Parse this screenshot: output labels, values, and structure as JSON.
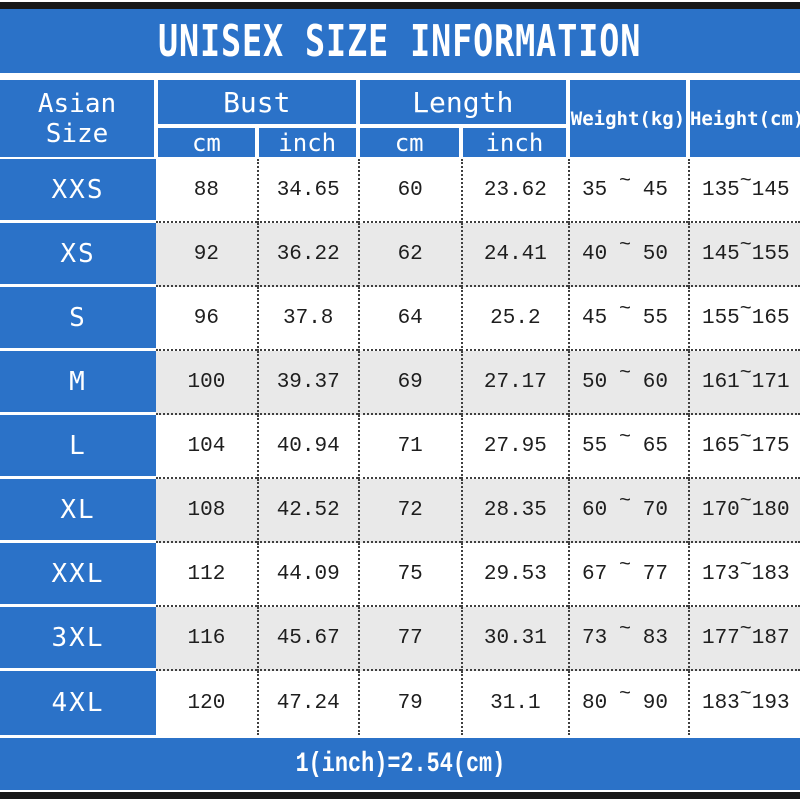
{
  "page": {
    "title": "UNISEX SIZE INFORMATION",
    "footnote": "1(inch)=2.54(cm)"
  },
  "header": {
    "asian_size": "Asian Size",
    "bust": "Bust",
    "length": "Length",
    "cm": "cm",
    "inch": "inch",
    "weight": "Weight(kg)",
    "height": "Height(cm)",
    "range_separator": "~"
  },
  "colors": {
    "accent_blue": "#2b72c8",
    "row_alt_gray": "#e9e9e9",
    "bar_black": "#181818",
    "text_dark": "#1e1e1e",
    "text_white": "#ffffff"
  },
  "chart_data": {
    "type": "table",
    "title": "UNISEX SIZE INFORMATION",
    "footnote": "1(inch)=2.54(cm)",
    "columns": [
      "Asian Size",
      "Bust cm",
      "Bust inch",
      "Length cm",
      "Length inch",
      "Weight(kg)",
      "Height(cm)"
    ],
    "rows": [
      {
        "size": "XXS",
        "bust_cm": "88",
        "bust_inch": "34.65",
        "length_cm": "60",
        "length_inch": "23.62",
        "weight_min": "35",
        "weight_max": "45",
        "height_min": "135",
        "height_max": "145"
      },
      {
        "size": "XS",
        "bust_cm": "92",
        "bust_inch": "36.22",
        "length_cm": "62",
        "length_inch": "24.41",
        "weight_min": "40",
        "weight_max": "50",
        "height_min": "145",
        "height_max": "155"
      },
      {
        "size": "S",
        "bust_cm": "96",
        "bust_inch": "37.8",
        "length_cm": "64",
        "length_inch": "25.2",
        "weight_min": "45",
        "weight_max": "55",
        "height_min": "155",
        "height_max": "165"
      },
      {
        "size": "M",
        "bust_cm": "100",
        "bust_inch": "39.37",
        "length_cm": "69",
        "length_inch": "27.17",
        "weight_min": "50",
        "weight_max": "60",
        "height_min": "161",
        "height_max": "171"
      },
      {
        "size": "L",
        "bust_cm": "104",
        "bust_inch": "40.94",
        "length_cm": "71",
        "length_inch": "27.95",
        "weight_min": "55",
        "weight_max": "65",
        "height_min": "165",
        "height_max": "175"
      },
      {
        "size": "XL",
        "bust_cm": "108",
        "bust_inch": "42.52",
        "length_cm": "72",
        "length_inch": "28.35",
        "weight_min": "60",
        "weight_max": "70",
        "height_min": "170",
        "height_max": "180"
      },
      {
        "size": "XXL",
        "bust_cm": "112",
        "bust_inch": "44.09",
        "length_cm": "75",
        "length_inch": "29.53",
        "weight_min": "67",
        "weight_max": "77",
        "height_min": "173",
        "height_max": "183"
      },
      {
        "size": "3XL",
        "bust_cm": "116",
        "bust_inch": "45.67",
        "length_cm": "77",
        "length_inch": "30.31",
        "weight_min": "73",
        "weight_max": "83",
        "height_min": "177",
        "height_max": "187"
      },
      {
        "size": "4XL",
        "bust_cm": "120",
        "bust_inch": "47.24",
        "length_cm": "79",
        "length_inch": "31.1",
        "weight_min": "80",
        "weight_max": "90",
        "height_min": "183",
        "height_max": "193"
      }
    ]
  }
}
